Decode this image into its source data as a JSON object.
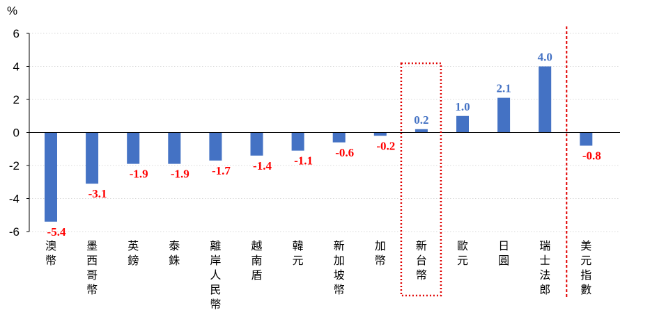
{
  "chart_data": {
    "type": "bar",
    "unit_label": "%",
    "categories": [
      "澳幣",
      "墨西哥幣",
      "英鎊",
      "泰銖",
      "離岸人民幣",
      "越南盾",
      "韓元",
      "新加坡幣",
      "加幣",
      "新台幣",
      "歐元",
      "日圓",
      "瑞士法郎",
      "美元指數"
    ],
    "values": [
      -5.4,
      -3.1,
      -1.9,
      -1.9,
      -1.7,
      -1.4,
      -1.1,
      -0.6,
      -0.2,
      0.2,
      1.0,
      2.1,
      4.0,
      -0.8
    ],
    "value_labels": [
      "-5.4",
      "-3.1",
      "-1.9",
      "-1.9",
      "-1.7",
      "-1.4",
      "-1.1",
      "-0.6",
      "-0.2",
      "0.2",
      "1.0",
      "2.1",
      "4.0",
      "-0.8"
    ],
    "ylim": [
      -6,
      6
    ],
    "yticks": [
      "6",
      "4",
      "2",
      "0",
      "-2",
      "-4",
      "-6"
    ],
    "ytick_values": [
      6,
      4,
      2,
      0,
      -2,
      -4,
      -6
    ],
    "grid": true,
    "highlight_box_category": "新台幣",
    "separator_before_category": "美元指數",
    "colors": {
      "bar": "#4472C4",
      "positive_label": "#4472C4",
      "negative_label": "#FF0000",
      "highlight": "#E00000",
      "grid": "#D9D9D9"
    }
  }
}
